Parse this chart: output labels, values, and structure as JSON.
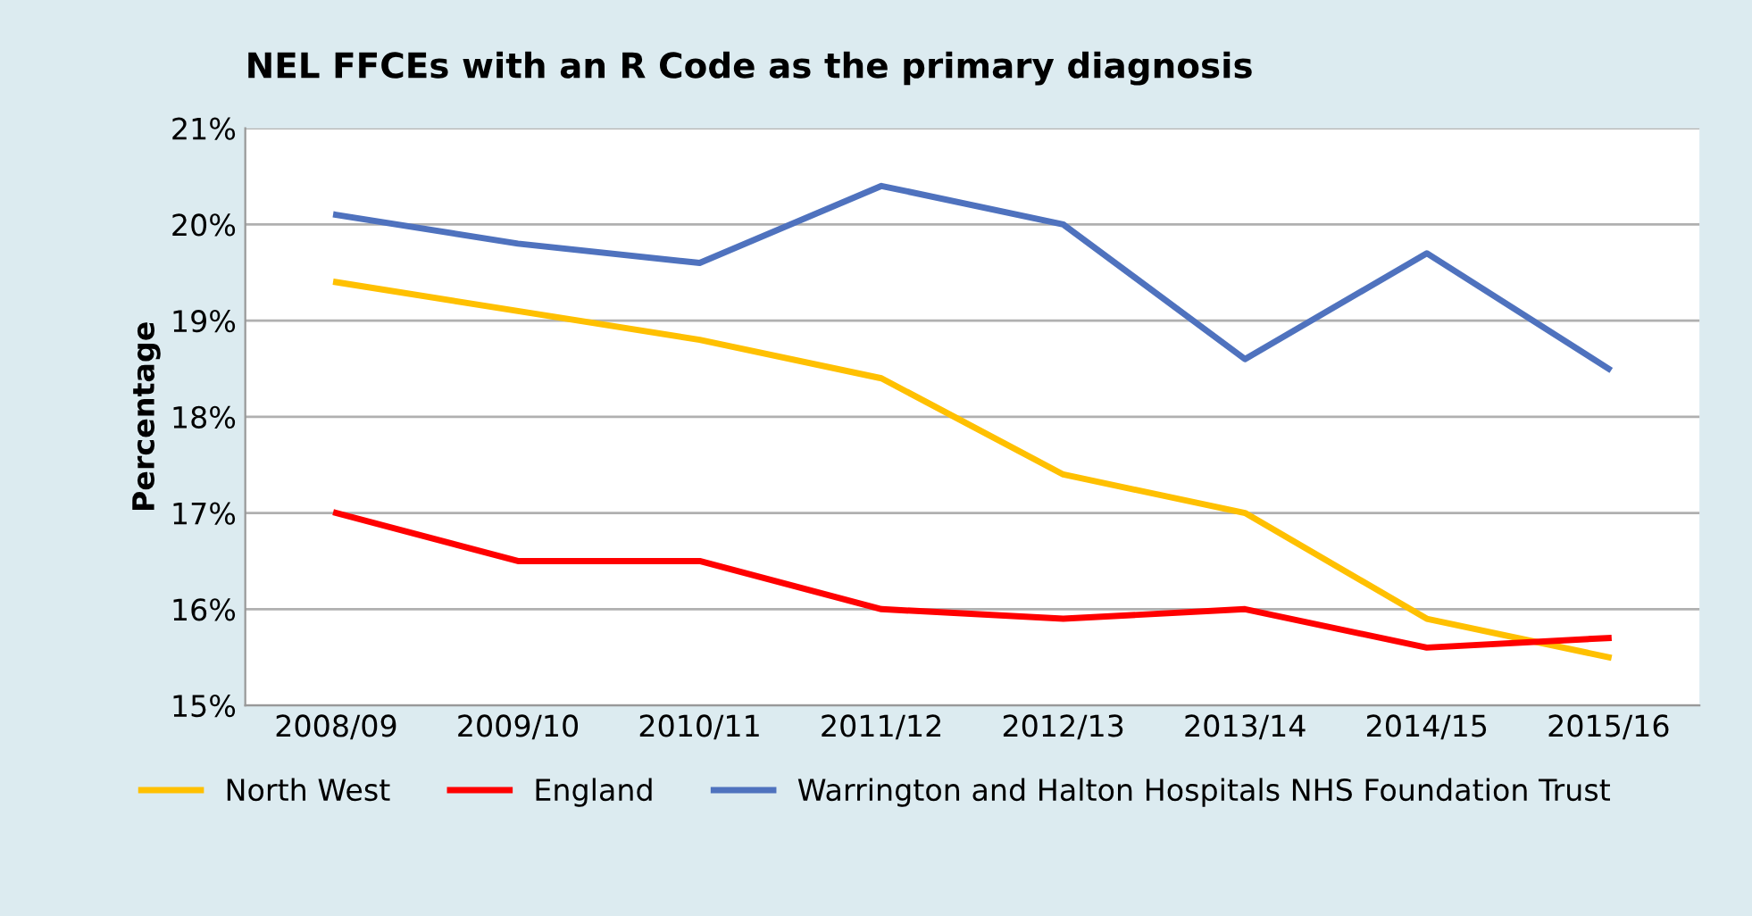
{
  "chart_data": {
    "type": "line",
    "title": "NEL FFCEs with an R Code as the primary diagnosis",
    "ylabel": "Percentage",
    "categories": [
      "2008/09",
      "2009/10",
      "2010/11",
      "2011/12",
      "2012/13",
      "2013/14",
      "2014/15",
      "2015/16"
    ],
    "series": [
      {
        "name": "North West",
        "color": "#ffc000",
        "values": [
          19.4,
          19.1,
          18.8,
          18.4,
          17.4,
          17.0,
          15.9,
          15.5
        ]
      },
      {
        "name": "England",
        "color": "#ff0000",
        "values": [
          17.0,
          16.5,
          16.5,
          16.0,
          15.9,
          16.0,
          15.6,
          15.7
        ]
      },
      {
        "name": "Warrington and Halton Hospitals NHS Foundation Trust",
        "color": "#4f72be",
        "values": [
          20.1,
          19.8,
          19.6,
          20.4,
          20.0,
          18.6,
          19.7,
          18.5
        ]
      }
    ],
    "ylim": [
      15,
      21
    ],
    "yticks": [
      {
        "value": 15,
        "label": "15%"
      },
      {
        "value": 16,
        "label": "16%"
      },
      {
        "value": 17,
        "label": "17%"
      },
      {
        "value": 18,
        "label": "18%"
      },
      {
        "value": 19,
        "label": "19%"
      },
      {
        "value": 20,
        "label": "20%"
      },
      {
        "value": 21,
        "label": "21%"
      }
    ],
    "grid": "y",
    "legend": "bottom",
    "marker": "none",
    "line_style": "solid"
  }
}
